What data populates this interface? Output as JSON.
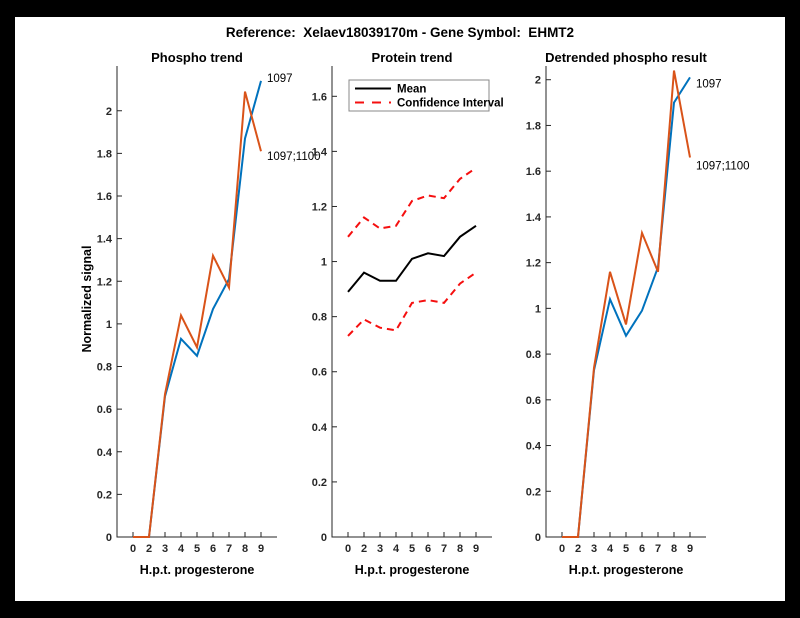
{
  "title": "Reference:  Xelaev18039170m - Gene Symbol:  EHMT2",
  "palette": {
    "blue": "#0072BD",
    "orange": "#D95319",
    "red": "#F50F0F",
    "black": "#000000",
    "axis": "#262626",
    "figure_background": "#FFFFFF",
    "page_background": "#000000",
    "legend_border": "#888888"
  },
  "chart_data": [
    {
      "type": "line",
      "title": "Phospho trend",
      "xlabel": "H.p.t. progesterone",
      "ylabel": "Normalized signal",
      "x_ticklabels": [
        "0",
        "2",
        "3",
        "4",
        "5",
        "6",
        "7",
        "8",
        "9"
      ],
      "yticks": [
        0,
        0.2,
        0.4,
        0.6,
        0.8,
        1,
        1.2,
        1.4,
        1.6,
        1.8,
        2
      ],
      "ylim": [
        0,
        2.21
      ],
      "grid": false,
      "legend": null,
      "series": [
        {
          "name": "1097",
          "color": "#0072BD",
          "style": "solid",
          "values": [
            0,
            0,
            0.66,
            0.93,
            0.85,
            1.07,
            1.21,
            1.87,
            2.14
          ],
          "end_label": "1097"
        },
        {
          "name": "1097;1100",
          "color": "#D95319",
          "style": "solid",
          "values": [
            0,
            0,
            0.67,
            1.04,
            0.89,
            1.32,
            1.17,
            2.09,
            1.81
          ],
          "end_label": "1097;1100"
        }
      ]
    },
    {
      "type": "line",
      "title": "Protein trend",
      "xlabel": "H.p.t. progesterone",
      "ylabel": "",
      "x_ticklabels": [
        "0",
        "2",
        "3",
        "4",
        "5",
        "6",
        "7",
        "8",
        "9"
      ],
      "yticks": [
        0,
        0.2,
        0.4,
        0.6,
        0.8,
        1,
        1.2,
        1.4,
        1.6
      ],
      "ylim": [
        0,
        1.71
      ],
      "grid": false,
      "legend": {
        "position": "northwest",
        "entries": [
          {
            "label": "Mean",
            "color": "#000000",
            "style": "solid"
          },
          {
            "label": "Confidence Interval",
            "color": "#F50F0F",
            "style": "dashed"
          }
        ]
      },
      "series": [
        {
          "name": "Mean",
          "color": "#000000",
          "style": "solid",
          "values": [
            0.89,
            0.96,
            0.93,
            0.93,
            1.01,
            1.03,
            1.02,
            1.09,
            1.13
          ]
        },
        {
          "name": "Confidence Interval upper",
          "color": "#F50F0F",
          "style": "dashed",
          "values": [
            1.09,
            1.16,
            1.12,
            1.13,
            1.22,
            1.24,
            1.23,
            1.3,
            1.34
          ]
        },
        {
          "name": "Confidence Interval lower",
          "color": "#F50F0F",
          "style": "dashed",
          "values": [
            0.73,
            0.79,
            0.76,
            0.75,
            0.85,
            0.86,
            0.85,
            0.92,
            0.96
          ]
        }
      ]
    },
    {
      "type": "line",
      "title": "Detrended phospho result",
      "xlabel": "H.p.t. progesterone",
      "ylabel": "",
      "x_ticklabels": [
        "0",
        "2",
        "3",
        "4",
        "5",
        "6",
        "7",
        "8",
        "9"
      ],
      "yticks": [
        0,
        0.2,
        0.4,
        0.6,
        0.8,
        1,
        1.2,
        1.4,
        1.6,
        1.8,
        2
      ],
      "ylim": [
        0,
        2.06
      ],
      "grid": false,
      "legend": null,
      "series": [
        {
          "name": "1097",
          "color": "#0072BD",
          "style": "solid",
          "values": [
            0,
            0,
            0.73,
            1.04,
            0.88,
            0.99,
            1.18,
            1.9,
            2.01
          ],
          "end_label": "1097"
        },
        {
          "name": "1097;1100",
          "color": "#D95319",
          "style": "solid",
          "values": [
            0,
            0,
            0.74,
            1.16,
            0.93,
            1.33,
            1.16,
            2.04,
            1.66
          ],
          "end_label": "1097;1100"
        }
      ]
    }
  ]
}
